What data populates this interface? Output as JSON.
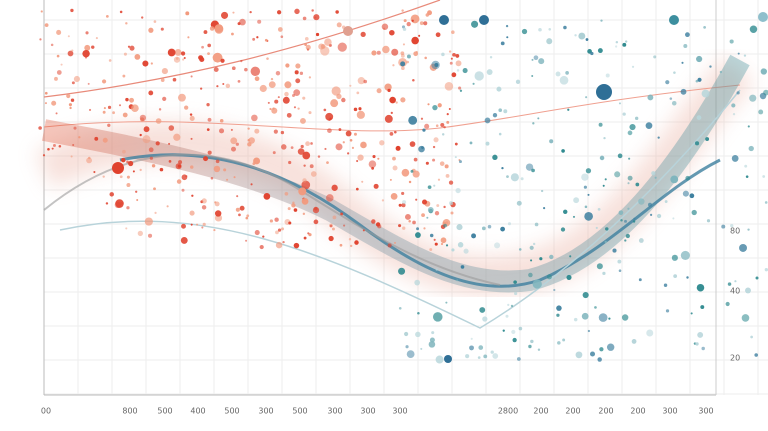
{
  "right_labels": [
    "80",
    "40",
    "20"
  ],
  "bottom_labels": [
    "00",
    "800",
    "500",
    "400",
    "500",
    "300",
    "500",
    "300",
    "300",
    "300",
    "2800",
    "200",
    "200",
    "200",
    "200",
    "300",
    "300"
  ]
}
